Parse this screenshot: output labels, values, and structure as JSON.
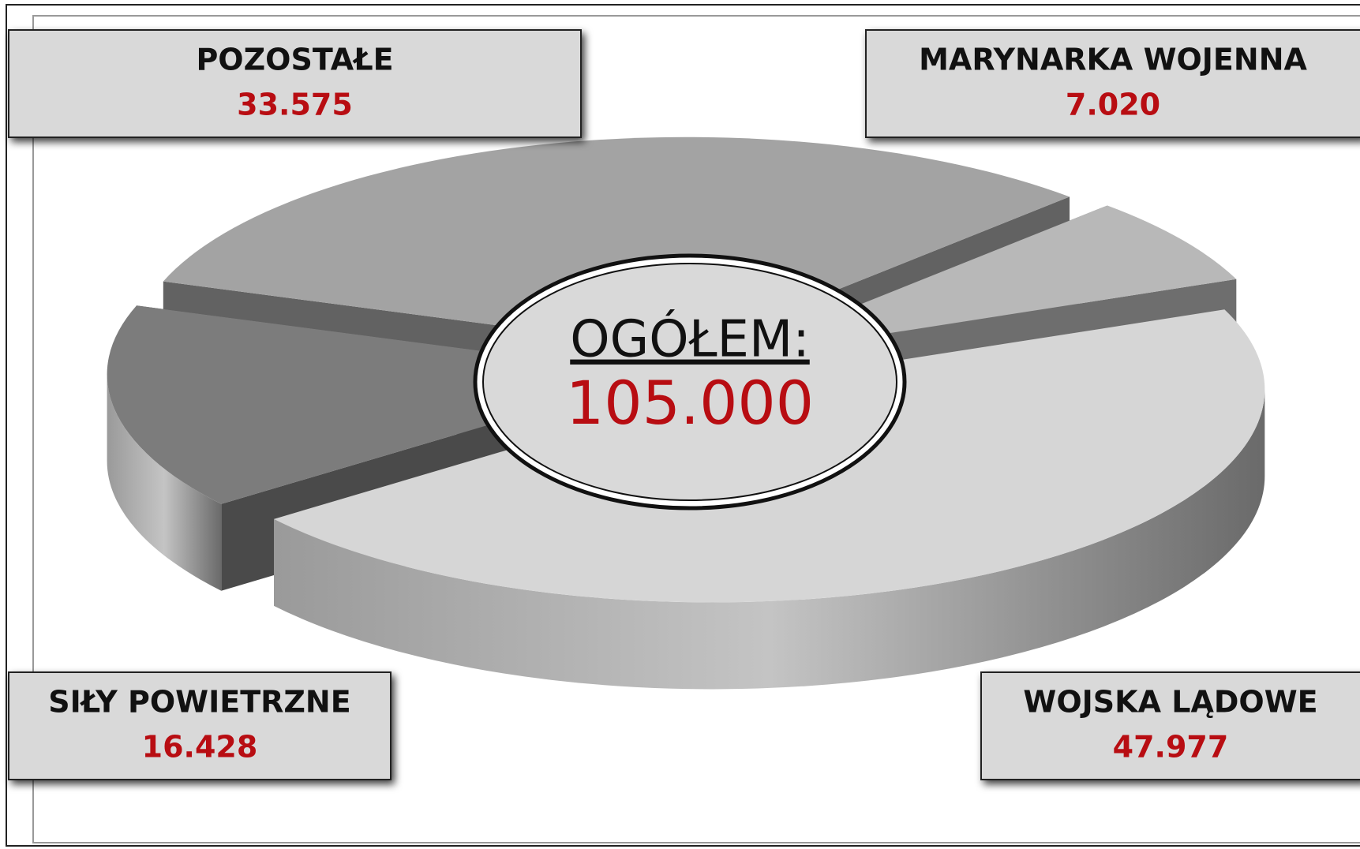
{
  "chart_data": {
    "type": "pie",
    "categories": [
      "WOJSKA LĄDOWE",
      "SIŁY POWIETRZNE",
      "POZOSTAŁE",
      "MARYNARKA WOJENNA"
    ],
    "values": [
      47977,
      16428,
      33575,
      7020
    ],
    "value_labels": [
      "47.977",
      "16.428",
      "33.575",
      "7.020"
    ],
    "colors": [
      "#d6d6d6",
      "#7c7c7c",
      "#a3a3a3",
      "#b8b8b8"
    ],
    "center_title": "OGÓŁEM:",
    "total": {
      "value": 105000,
      "label": "105.000"
    }
  }
}
